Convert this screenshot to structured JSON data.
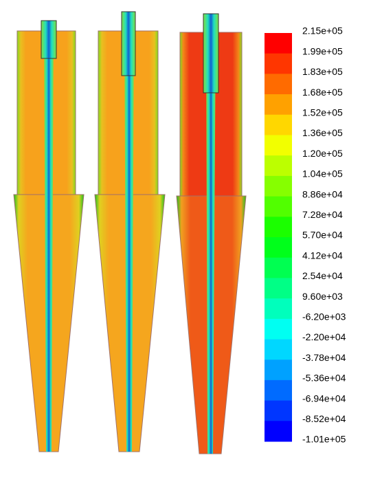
{
  "colorbar": {
    "labels": [
      "2.15e+05",
      "1.99e+05",
      "1.83e+05",
      "1.68e+05",
      "1.52e+05",
      "1.36e+05",
      "1.20e+05",
      "1.04e+05",
      "8.86e+04",
      "7.28e+04",
      "5.70e+04",
      "4.12e+04",
      "2.54e+04",
      "9.60e+03",
      "-6.20e+03",
      "-2.20e+04",
      "-3.78e+04",
      "-5.36e+04",
      "-6.94e+04",
      "-8.52e+04",
      "-1.01e+05"
    ]
  }
}
